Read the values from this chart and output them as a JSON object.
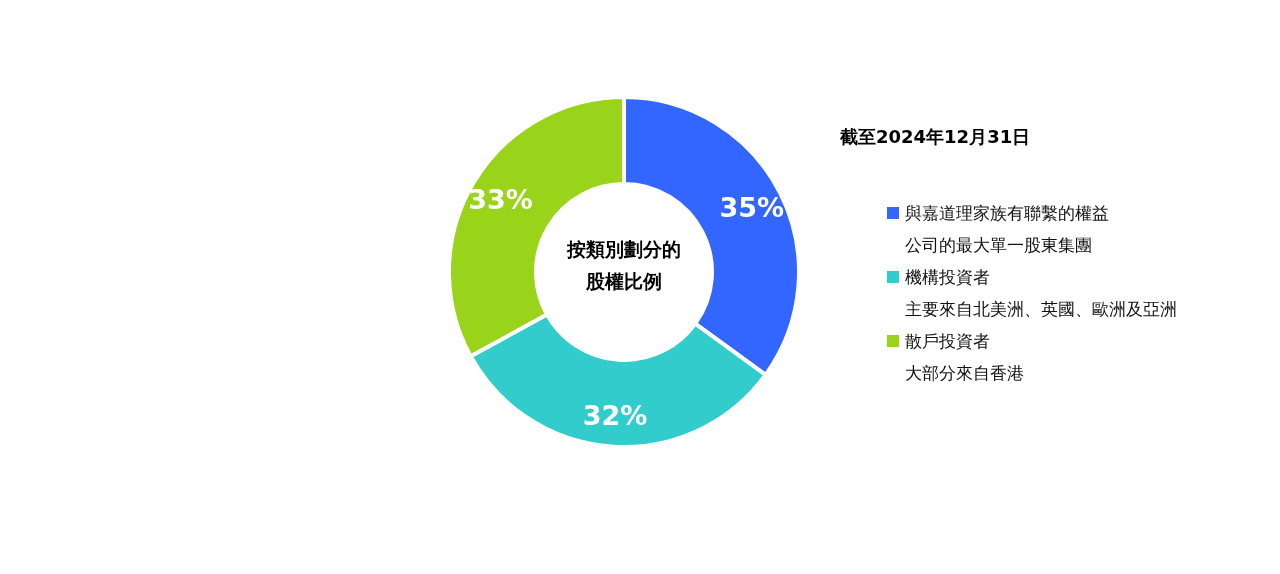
{
  "chart_data": {
    "type": "donut",
    "title": "按類別劃分的股權比例",
    "subtitle": "截至2024年12月31日",
    "categories": [
      "與嘉道理家族有聯繫的權益公司的最大單一股東集團",
      "機構投資者",
      "散戶投資者"
    ],
    "annotations": [
      "主要來自北美洲、英國、歐洲及亞洲",
      "大部分來自香港"
    ],
    "values": [
      35,
      32,
      33
    ],
    "value_labels": [
      "35%",
      "32%",
      "33%"
    ],
    "colors": [
      "#3366ff",
      "#33cccc",
      "#99d31a"
    ],
    "legend": "right"
  }
}
